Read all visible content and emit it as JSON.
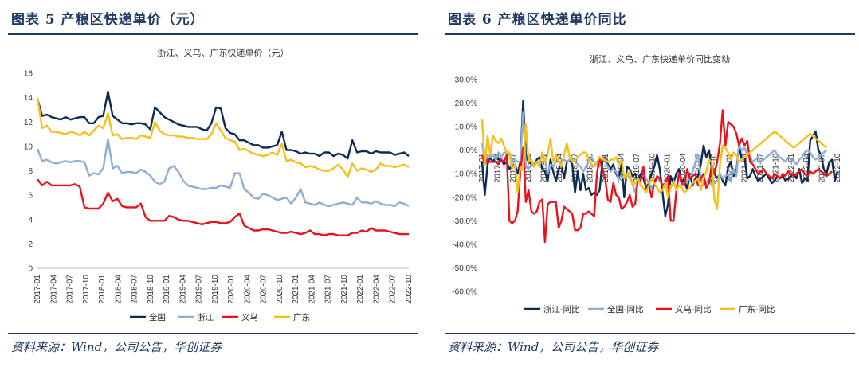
{
  "left": {
    "figure_title": "图表 5   产粮区快递单价（元）",
    "source": "资料来源：Wind，公司公告，华创证券"
  },
  "right": {
    "figure_title": "图表 6   产粮区快递单价同比",
    "source": "资料来源：Wind，公司公告，华创证券"
  },
  "chart_data": [
    {
      "type": "line",
      "title": "浙江、义乌、广东快递单价（元）",
      "xlabel": "",
      "ylabel": "",
      "ylim": [
        0,
        16
      ],
      "yticks": [
        "0",
        "2",
        "4",
        "6",
        "8",
        "10",
        "12",
        "14",
        "16"
      ],
      "x_start": "2017-01",
      "x_tick_labels": [
        "2017-01",
        "2017-04",
        "2017-07",
        "2017-10",
        "2018-01",
        "2018-04",
        "2018-07",
        "2018-10",
        "2019-01",
        "2019-04",
        "2019-07",
        "2019-10",
        "2020-01",
        "2020-04",
        "2020-07",
        "2020-10",
        "2021-01",
        "2021-04",
        "2021-07",
        "2021-10",
        "2022-01",
        "2022-04",
        "2022-07",
        "2022-10"
      ],
      "grid": false,
      "legend": "bottom",
      "series": [
        {
          "name": "全国",
          "color": "#0d2b55",
          "values": [
            13.9,
            12.5,
            12.6,
            12.4,
            12.3,
            12.2,
            12.4,
            12.2,
            12.3,
            12.4,
            12.4,
            11.9,
            11.9,
            12.4,
            12.5,
            14.5,
            12.5,
            12.2,
            11.9,
            11.9,
            11.8,
            11.9,
            11.9,
            11.8,
            11.4,
            13.2,
            12.8,
            12.4,
            12.2,
            12.0,
            11.8,
            11.7,
            11.6,
            11.6,
            11.6,
            11.4,
            11.3,
            11.9,
            13.2,
            13.1,
            11.5,
            11.1,
            11.0,
            10.5,
            10.5,
            10.3,
            10.1,
            10.1,
            9.9,
            9.9,
            10.0,
            10.1,
            11.2,
            9.7,
            9.7,
            9.6,
            9.4,
            9.5,
            9.4,
            9.4,
            9.2,
            9.5,
            9.5,
            9.2,
            9.4,
            9.3,
            9.0,
            10.5,
            9.5,
            9.6,
            9.6,
            9.4,
            9.6,
            9.5,
            9.5,
            9.5,
            9.3,
            9.4,
            9.5,
            9.2
          ]
        },
        {
          "name": "浙江",
          "color": "#8eaed6",
          "values": [
            9.8,
            8.8,
            8.9,
            8.7,
            8.6,
            8.7,
            8.8,
            8.7,
            8.8,
            8.8,
            8.7,
            7.6,
            7.8,
            7.7,
            8.2,
            10.6,
            8.2,
            8.4,
            7.8,
            7.9,
            7.9,
            7.8,
            8.1,
            7.9,
            7.6,
            7.1,
            6.9,
            7.1,
            8.2,
            8.4,
            7.9,
            7.2,
            6.8,
            6.7,
            6.6,
            6.5,
            6.5,
            6.6,
            6.6,
            6.8,
            6.7,
            6.6,
            7.8,
            7.8,
            6.5,
            6.2,
            5.8,
            5.7,
            6.1,
            6.0,
            5.8,
            5.6,
            5.7,
            5.8,
            5.3,
            5.8,
            6.5,
            5.4,
            5.3,
            5.2,
            5.4,
            5.2,
            5.1,
            5.2,
            5.3,
            5.4,
            5.3,
            5.2,
            5.8,
            5.4,
            5.4,
            5.3,
            5.5,
            5.3,
            5.2,
            5.2,
            5.1,
            5.4,
            5.3,
            5.1
          ]
        },
        {
          "name": "义乌",
          "color": "#e8131b",
          "values": [
            7.3,
            6.8,
            7.1,
            6.8,
            6.8,
            6.8,
            6.8,
            6.8,
            6.9,
            6.7,
            5.0,
            4.9,
            4.9,
            4.9,
            5.3,
            6.2,
            5.5,
            5.7,
            5.1,
            5.0,
            5.0,
            5.0,
            5.3,
            4.2,
            3.9,
            3.9,
            3.9,
            3.9,
            4.3,
            4.2,
            4.0,
            3.9,
            3.9,
            3.8,
            3.7,
            3.6,
            3.7,
            3.8,
            3.8,
            3.7,
            3.7,
            3.8,
            4.2,
            4.5,
            3.5,
            3.3,
            3.1,
            3.1,
            3.2,
            3.2,
            3.1,
            3.0,
            2.9,
            2.9,
            3.0,
            2.9,
            2.8,
            2.9,
            3.1,
            2.8,
            2.8,
            2.7,
            2.8,
            2.8,
            2.7,
            2.7,
            2.7,
            2.9,
            2.9,
            3.1,
            3.0,
            3.3,
            3.1,
            3.1,
            3.1,
            3.0,
            2.9,
            2.8,
            2.8,
            2.8
          ]
        },
        {
          "name": "广东",
          "color": "#f6bf1a",
          "values": [
            14.0,
            11.5,
            11.7,
            11.2,
            11.2,
            11.1,
            11.0,
            11.2,
            11.1,
            10.9,
            11.2,
            10.9,
            11.3,
            11.7,
            11.5,
            12.7,
            10.9,
            11.0,
            10.6,
            10.7,
            10.7,
            10.6,
            10.9,
            10.8,
            10.7,
            12.0,
            11.3,
            11.0,
            10.9,
            10.9,
            10.8,
            10.8,
            10.7,
            10.7,
            10.6,
            10.6,
            10.6,
            11.0,
            11.9,
            11.3,
            10.7,
            10.5,
            10.4,
            9.7,
            9.8,
            9.6,
            9.4,
            9.3,
            9.2,
            9.3,
            9.5,
            9.3,
            10.2,
            8.8,
            8.9,
            8.7,
            8.6,
            8.3,
            8.4,
            8.3,
            8.1,
            8.0,
            8.0,
            8.2,
            8.5,
            8.1,
            7.5,
            8.6,
            8.0,
            8.2,
            8.1,
            7.9,
            8.1,
            8.6,
            8.4,
            8.4,
            8.3,
            8.4,
            8.5,
            8.3
          ]
        }
      ]
    },
    {
      "type": "line",
      "title": "浙江、义乌、广东快递单价同比变动",
      "xlabel": "",
      "ylabel": "",
      "ylim": [
        -60,
        30
      ],
      "yticks": [
        "-60.0%",
        "-50.0%",
        "-40.0%",
        "-30.0%",
        "-20.0%",
        "-10.0%",
        "0.0%",
        "10.0%",
        "20.0%",
        "30.0%"
      ],
      "x_start": "2017-01",
      "x_tick_labels": [
        "2017-01",
        "2017-04",
        "2017-07",
        "2017-10",
        "2018-01",
        "2018-04",
        "2018-07",
        "2018-10",
        "2019-01",
        "2019-04",
        "2019-07",
        "2019-10",
        "2020-01",
        "2020-04",
        "2020-07",
        "2020-10",
        "2021-01",
        "2021-04",
        "2021-07",
        "2021-10",
        "2022-01",
        "2022-04",
        "2022-07",
        "2022-10"
      ],
      "grid": false,
      "legend": "bottom",
      "series": [
        {
          "name": "浙江-同比",
          "color": "#0d2b55",
          "values": [
            -5,
            -19,
            -6,
            -3,
            -5,
            -3,
            -4,
            -4,
            -6,
            -5,
            -8,
            -7,
            -6,
            -10,
            -5,
            21,
            -2,
            -5,
            -6,
            -7,
            -4,
            -3,
            -8,
            -9,
            -13,
            -4,
            -9,
            -13,
            -8,
            -6,
            -12,
            -5,
            -4,
            -6,
            -18,
            -9,
            -17,
            -10,
            -17,
            -16,
            -19,
            -18,
            -19,
            -17,
            -5,
            -3,
            -6,
            -8,
            -6,
            -10,
            -12,
            -6,
            -20,
            -7,
            -8,
            -11,
            -10,
            -13,
            -10,
            -12,
            -16,
            -14,
            -10,
            -7,
            -2,
            -8,
            -18,
            -28,
            -23,
            -11,
            -14,
            -10,
            -8,
            -14,
            -12,
            -17,
            -10,
            -15,
            -12,
            -11,
            -6,
            2,
            -3,
            0,
            -8,
            -10,
            -12,
            -10,
            -13,
            -15,
            -7,
            -5,
            -11,
            -9,
            2,
            -4,
            -3,
            -12,
            -11,
            -8,
            -11,
            -13,
            -12,
            -11,
            -10,
            -12,
            -14,
            -13,
            -11,
            -12,
            -11,
            -13,
            -12,
            -11,
            -10,
            -12,
            -8,
            -14,
            -12,
            -13,
            4,
            6,
            8,
            0,
            -2,
            -8,
            -10,
            -5,
            -4,
            -13,
            -9
          ]
        },
        {
          "name": "全国-同比",
          "color": "#8eaed6",
          "values": [
            3,
            -5,
            -2,
            -3,
            -2,
            -4,
            -1,
            -3,
            -1,
            -1,
            -2,
            -4,
            -4,
            -5,
            -5,
            16,
            -7,
            -8,
            -6,
            -5,
            -5,
            -5,
            -3,
            -4,
            -10,
            -6,
            -7,
            -5,
            -5,
            -5,
            -4,
            -5,
            -4,
            -4,
            -5,
            -6,
            -7,
            -9,
            -7,
            -5,
            -3,
            -5,
            -6,
            -7,
            -3,
            -5,
            -7,
            -9,
            -8,
            -9,
            -12,
            -11,
            -12,
            -10,
            -12,
            -14,
            -18,
            -13,
            -12,
            -10,
            -12,
            -14,
            -16,
            -14,
            -12,
            -13,
            -15,
            -14,
            -16,
            -15,
            -14,
            -16,
            -15,
            -15,
            -14,
            -13,
            -12,
            -9,
            -5,
            -2,
            -12,
            -15,
            -14,
            -12,
            -15,
            -14,
            -13,
            -10,
            -12,
            -11,
            -10,
            -13,
            -8,
            -11,
            2,
            0,
            1,
            -2,
            -3,
            -5,
            -4,
            -3,
            -5,
            -4,
            -3,
            -2,
            -1,
            0,
            -2,
            -3,
            -4,
            -5,
            -3,
            -4,
            -5,
            -6,
            -4,
            -3,
            -1,
            0,
            -1,
            -3,
            -4,
            -3,
            -2,
            -1,
            0
          ]
        },
        {
          "name": "义乌-同比",
          "color": "#e8131b",
          "values": [
            -2,
            -6,
            -4,
            -5,
            -5,
            -5,
            -6,
            -4,
            -5,
            -2,
            -30,
            -31,
            -30,
            -26,
            -9,
            1,
            -22,
            -17,
            -26,
            -27,
            -26,
            -22,
            -21,
            -39,
            -23,
            -22,
            -22,
            -22,
            -33,
            -30,
            -24,
            -25,
            -26,
            -27,
            -34,
            -34,
            -33,
            -27,
            -27,
            -26,
            -27,
            -28,
            -10,
            -3,
            -8,
            -12,
            -21,
            -22,
            -14,
            -19,
            -20,
            -25,
            -24,
            -22,
            -19,
            -24,
            -23,
            -12,
            -13,
            -7,
            -17,
            -15,
            -20,
            -14,
            -11,
            -12,
            -15,
            -14,
            -11,
            -30,
            -30,
            -18,
            -10,
            -14,
            -15,
            -8,
            -12,
            -11,
            -10,
            -15,
            -12,
            -10,
            -16,
            -14,
            -6,
            -10,
            -5,
            3,
            17,
            2,
            12,
            11,
            10,
            7,
            2,
            5,
            2,
            4,
            -5,
            -6,
            -8,
            -10,
            -9,
            -8,
            -10,
            -11,
            -12,
            -10,
            -11,
            -12,
            -10,
            -11,
            -9,
            -10,
            -11,
            -10,
            -9,
            -8,
            -10,
            -11,
            -9,
            -10,
            -9,
            -8,
            -9,
            -10,
            -11,
            -10,
            -9
          ]
        },
        {
          "name": "广东-同比",
          "color": "#f6bf1a",
          "values": [
            13,
            -6,
            6,
            -2,
            6,
            4,
            3,
            5,
            2,
            -1,
            -1,
            -8,
            -6,
            -18,
            -7,
            -8,
            11,
            -5,
            -4,
            -7,
            -5,
            -7,
            -1,
            -5,
            -2,
            5,
            -5,
            -2,
            -5,
            -7,
            -2,
            3,
            -3,
            -5,
            -4,
            -3,
            -2,
            -1,
            -1,
            -4,
            -6,
            -7,
            -5,
            -3,
            -4,
            -4,
            -5,
            -4,
            -4,
            -3,
            -6,
            -4,
            -12,
            -11,
            -9,
            -15,
            -14,
            -12,
            -15,
            -16,
            -18,
            -15,
            -12,
            -14,
            -16,
            -18,
            -17,
            -14,
            -20,
            -16,
            -13,
            -17,
            -15,
            -16,
            -18,
            -17,
            -16,
            -14,
            -13,
            -12,
            -17,
            -12,
            -9,
            -4,
            -5,
            -21,
            -25,
            -6,
            2,
            1,
            -1,
            -4,
            -1,
            -2,
            -5,
            -4,
            -3,
            -2,
            -1,
            0,
            1,
            2,
            3,
            4,
            5,
            6,
            7,
            8,
            7,
            6,
            5,
            4,
            3,
            2,
            1,
            2,
            3,
            4,
            5,
            6,
            7,
            6,
            5,
            4,
            3,
            2,
            1
          ]
        }
      ]
    }
  ]
}
